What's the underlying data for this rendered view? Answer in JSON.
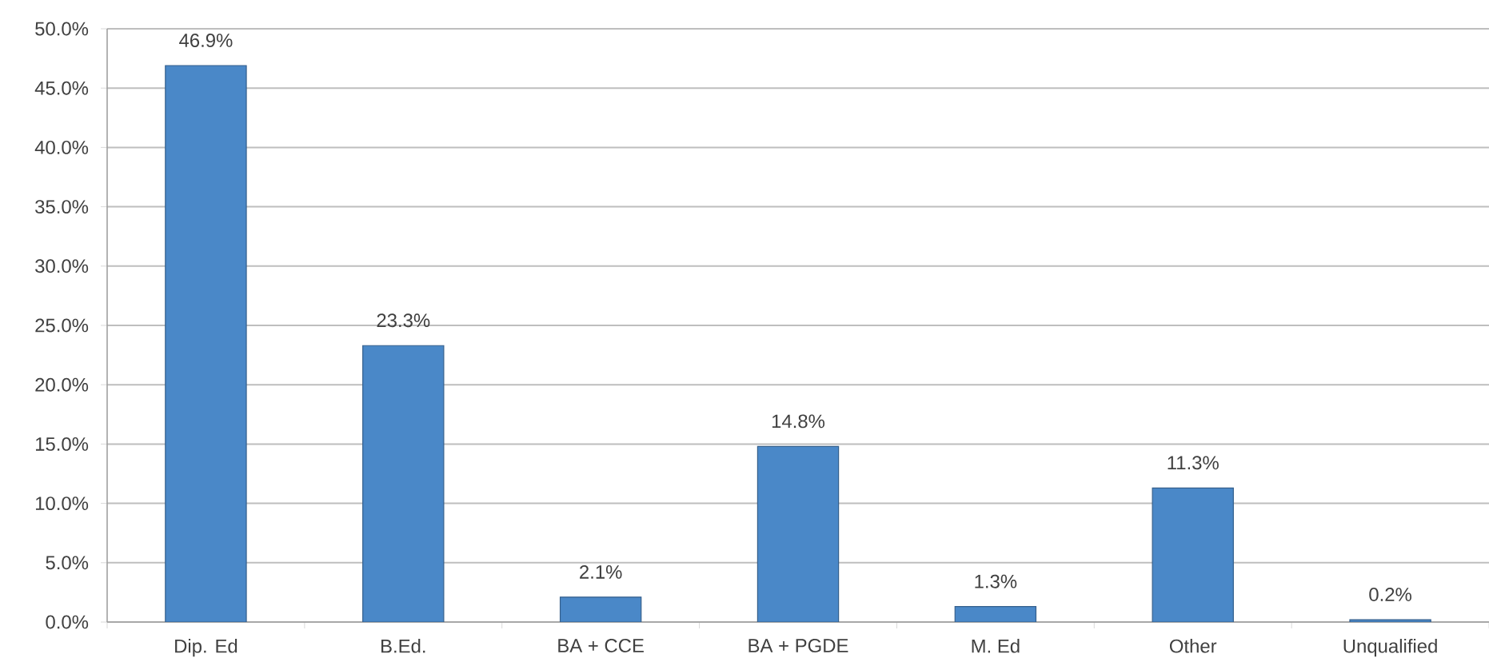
{
  "chart_data": {
    "type": "bar",
    "categories": [
      "Dip. Ed",
      "B.Ed.",
      "BA + CCE",
      "BA + PGDE",
      "M. Ed",
      "Other",
      "Unqualified"
    ],
    "values": [
      46.9,
      23.3,
      2.1,
      14.8,
      1.3,
      11.3,
      0.2
    ],
    "value_labels": [
      "46.9%",
      "23.3%",
      "2.1%",
      "14.8%",
      "1.3%",
      "11.3%",
      "0.2%"
    ],
    "color": "#4a88c8",
    "ylim": [
      0,
      50
    ],
    "yticks": [
      {
        "value": 0,
        "label": "0.0%"
      },
      {
        "value": 5,
        "label": "5.0%"
      },
      {
        "value": 10,
        "label": "10.0%"
      },
      {
        "value": 15,
        "label": "15.0%"
      },
      {
        "value": 20,
        "label": "20.0%"
      },
      {
        "value": 25,
        "label": "25.0%"
      },
      {
        "value": 30,
        "label": "30.0%"
      },
      {
        "value": 35,
        "label": "35.0%"
      },
      {
        "value": 40,
        "label": "40.0%"
      },
      {
        "value": 45,
        "label": "45.0%"
      },
      {
        "value": 50,
        "label": "50.0%"
      }
    ],
    "grid": "y"
  }
}
